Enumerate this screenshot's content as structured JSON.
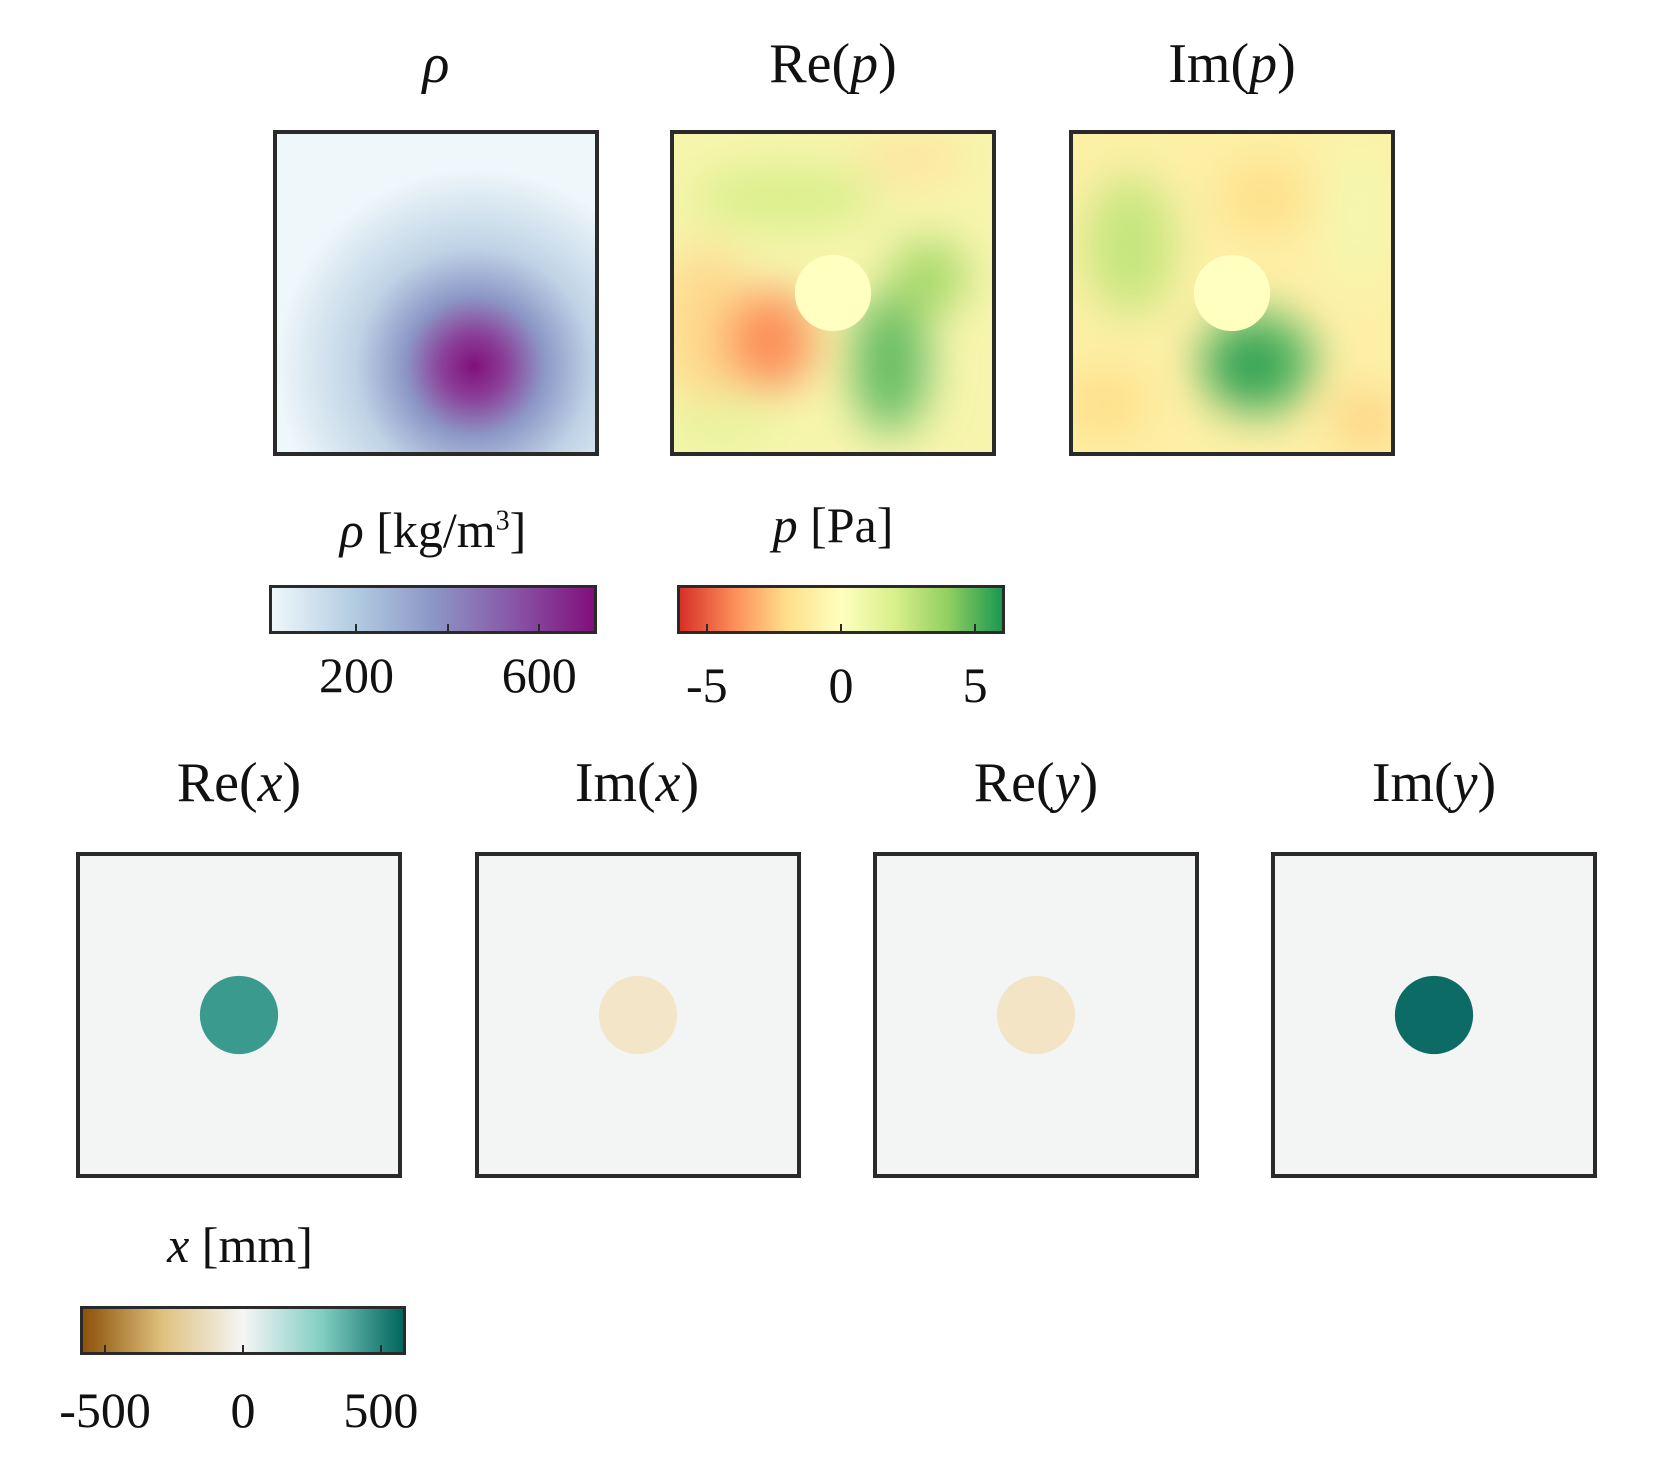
{
  "chart_data": {
    "type": "heatmap",
    "panels": [
      {
        "id": "rho",
        "title_main": "ρ",
        "title_prefix": "",
        "title_suffix": "",
        "colormap": "BuPu",
        "colorbar": "rho",
        "description_field": "gaussian density blob, peak lower-center",
        "peak_value": 720
      },
      {
        "id": "re_p",
        "title_prefix": "Re(",
        "title_main": "p",
        "title_suffix": ")",
        "colormap": "RdYlGn",
        "colorbar": "p",
        "min_value": -3,
        "max_value": 4
      },
      {
        "id": "im_p",
        "title_prefix": "Im(",
        "title_main": "p",
        "title_suffix": ")",
        "colormap": "RdYlGn",
        "colorbar": "p",
        "min_value": -2,
        "max_value": 5
      },
      {
        "id": "re_x",
        "title_prefix": "Re(",
        "title_main": "x",
        "title_suffix": ")",
        "colormap": "BrBG",
        "colorbar": "x",
        "circle_value": 330
      },
      {
        "id": "im_x",
        "title_prefix": "Im(",
        "title_main": "x",
        "title_suffix": ")",
        "colormap": "BrBG",
        "colorbar": "x",
        "circle_value": -80
      },
      {
        "id": "re_y",
        "title_prefix": "Re(",
        "title_main": "y",
        "title_suffix": ")",
        "colormap": "BrBG",
        "colorbar": "x",
        "circle_value": -80
      },
      {
        "id": "im_y",
        "title_prefix": "Im(",
        "title_main": "y",
        "title_suffix": ")",
        "colormap": "BrBG",
        "colorbar": "x",
        "circle_value": 560
      }
    ],
    "colorbars": {
      "rho": {
        "label_main": "ρ",
        "label_unit": " [kg/m",
        "label_sup": "3",
        "label_end": "]",
        "range": [
          15,
          720
        ],
        "ticks": [
          200,
          400,
          600
        ],
        "tick_labels": [
          "200",
          "",
          "600"
        ],
        "colors": [
          "#eef7fa",
          "#b3cde3",
          "#8c96c6",
          "#8856a7",
          "#810f7c"
        ]
      },
      "p": {
        "label_main": "p",
        "label_unit": " [Pa]",
        "range": [
          -6,
          6
        ],
        "ticks": [
          -5,
          0,
          5
        ],
        "tick_labels": [
          "-5",
          "0",
          "5"
        ],
        "colors": [
          "#d73027",
          "#fc8d59",
          "#fee08b",
          "#ffffbf",
          "#d9ef8b",
          "#91cf60",
          "#1a9850"
        ]
      },
      "x": {
        "label_main": "x",
        "label_unit": " [mm]",
        "range": [
          -580,
          580
        ],
        "ticks": [
          -500,
          0,
          500
        ],
        "tick_labels": [
          "-500",
          "0",
          "500"
        ],
        "colors": [
          "#8c510a",
          "#dfc27d",
          "#f5f5f5",
          "#80cdc1",
          "#01665e"
        ]
      }
    }
  }
}
